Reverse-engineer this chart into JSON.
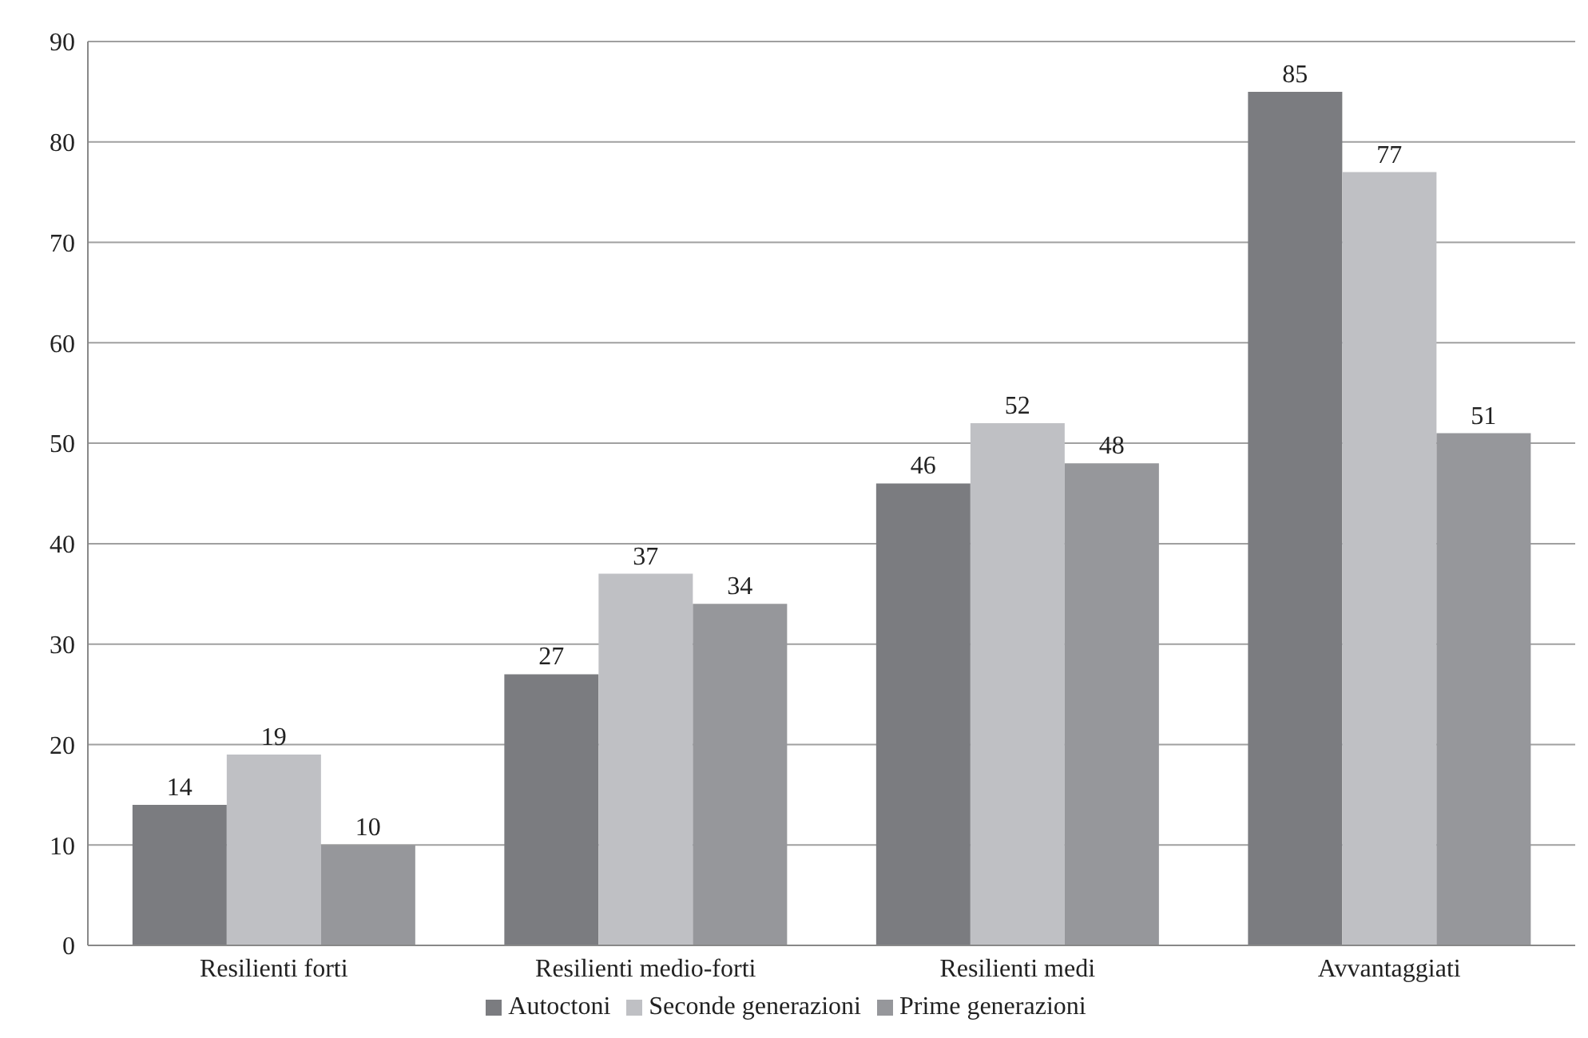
{
  "chart_data": {
    "type": "bar",
    "categories": [
      "Resilienti forti",
      "Resilienti medio-forti",
      "Resilienti medi",
      "Avvantaggiati"
    ],
    "series": [
      {
        "name": "Autoctoni",
        "color": "#7b7c80",
        "values": [
          14,
          27,
          46,
          85
        ]
      },
      {
        "name": "Seconde generazioni",
        "color": "#bfc0c4",
        "values": [
          19,
          37,
          52,
          77
        ]
      },
      {
        "name": "Prime generazioni",
        "color": "#96979b",
        "values": [
          10,
          34,
          48,
          51
        ]
      }
    ],
    "ylim": [
      0,
      90
    ],
    "yticks": [
      0,
      10,
      20,
      30,
      40,
      50,
      60,
      70,
      80,
      90
    ],
    "grid": "y",
    "legend": "bottom",
    "data_labels": true
  }
}
